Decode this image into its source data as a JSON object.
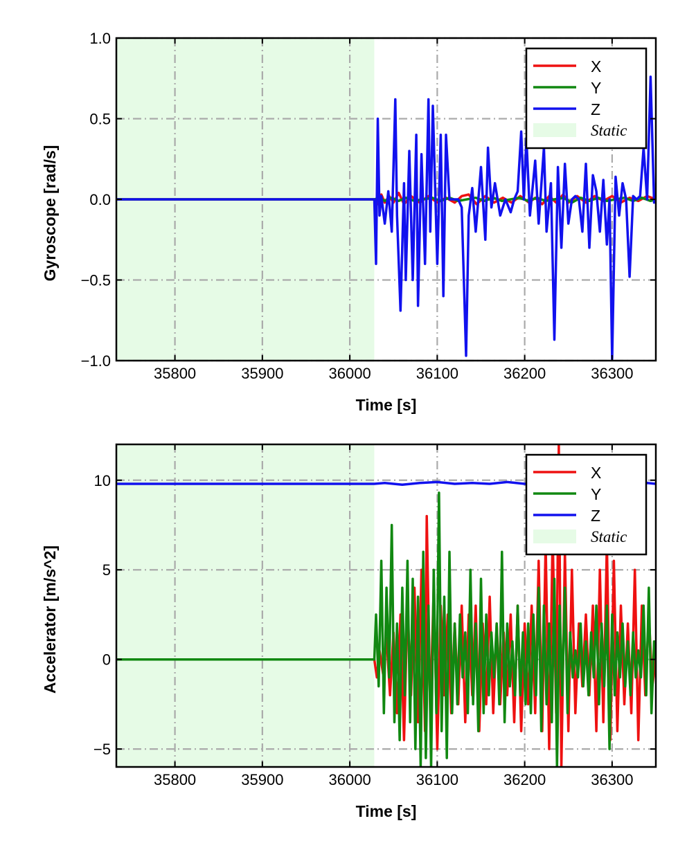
{
  "chart_data": [
    {
      "type": "line",
      "xlabel": "Time [s]",
      "ylabel": "Gyroscope [rad/s]",
      "xlim": [
        35733,
        36350
      ],
      "ylim": [
        -1.0,
        1.0
      ],
      "x_ticks": [
        35800,
        35900,
        36000,
        36100,
        36200,
        36300
      ],
      "y_ticks": [
        -1.0,
        -0.5,
        0.0,
        0.5,
        1.0
      ],
      "y_tick_labels": [
        "−1.0",
        "−0.5",
        "0.0",
        "0.5",
        "1.0"
      ],
      "grid": true,
      "legend_position": "top-right",
      "static_region": {
        "label": "Static",
        "x_start": 35733,
        "x_end": 36028,
        "color": "#e6fbe6"
      },
      "series": [
        {
          "name": "X",
          "color": "#ee1111",
          "x": [
            35733,
            36028,
            36032,
            36036,
            36040,
            36045,
            36050,
            36056,
            36062,
            36070,
            36080,
            36090,
            36100,
            36110,
            36120,
            36128,
            36136,
            36145,
            36155,
            36165,
            36175,
            36185,
            36195,
            36205,
            36212,
            36220,
            36228,
            36236,
            36244,
            36250,
            36260,
            36270,
            36280,
            36290,
            36300,
            36310,
            36320,
            36330,
            36340,
            36350
          ],
          "y": [
            0.0,
            0.0,
            -0.03,
            0.03,
            -0.02,
            0.02,
            -0.02,
            0.04,
            -0.03,
            0.02,
            -0.02,
            0.02,
            -0.02,
            0.01,
            -0.02,
            0.02,
            0.03,
            -0.03,
            0.02,
            -0.02,
            0.01,
            -0.02,
            0.02,
            -0.02,
            0.01,
            -0.03,
            0.02,
            -0.02,
            0.03,
            -0.02,
            0.02,
            -0.02,
            0.02,
            -0.01,
            0.02,
            -0.02,
            0.01,
            -0.01,
            0.02,
            0.0
          ]
        },
        {
          "name": "Y",
          "color": "#118811",
          "x": [
            35733,
            36028,
            36034,
            36040,
            36048,
            36056,
            36064,
            36074,
            36084,
            36094,
            36104,
            36114,
            36124,
            36134,
            36144,
            36154,
            36164,
            36174,
            36184,
            36194,
            36204,
            36214,
            36224,
            36234,
            36244,
            36254,
            36264,
            36274,
            36284,
            36294,
            36304,
            36314,
            36324,
            36334,
            36344,
            36350
          ],
          "y": [
            0.0,
            0.0,
            0.01,
            -0.01,
            0.01,
            -0.01,
            0.01,
            -0.01,
            0.0,
            0.01,
            -0.01,
            0.01,
            -0.01,
            0.0,
            0.01,
            -0.01,
            0.01,
            -0.01,
            0.0,
            0.01,
            -0.01,
            0.01,
            -0.01,
            0.0,
            0.01,
            -0.02,
            0.01,
            -0.01,
            0.01,
            -0.01,
            0.0,
            0.01,
            -0.01,
            0.01,
            -0.01,
            0.0
          ]
        },
        {
          "name": "Z",
          "color": "#1111ee",
          "x": [
            35733,
            36028,
            36030,
            36032,
            36034,
            36036,
            36040,
            36044,
            36048,
            36052,
            36054,
            36058,
            36062,
            36064,
            36068,
            36072,
            36076,
            36078,
            36082,
            36086,
            36090,
            36092,
            36095,
            36098,
            36100,
            36104,
            36107,
            36110,
            36114,
            36118,
            36124,
            36128,
            36133,
            36136,
            36140,
            36144,
            36150,
            36155,
            36158,
            36162,
            36166,
            36172,
            36178,
            36184,
            36188,
            36192,
            36196,
            36199,
            36202,
            36206,
            36212,
            36216,
            36222,
            36225,
            36230,
            36234,
            36238,
            36242,
            36246,
            36250,
            36254,
            36258,
            36262,
            36266,
            36270,
            36274,
            36278,
            36282,
            36286,
            36290,
            36294,
            36297,
            36300,
            36304,
            36308,
            36312,
            36316,
            36320,
            36324,
            36328,
            36332,
            36336,
            36340,
            36344,
            36348,
            36350
          ],
          "y": [
            0.0,
            0.0,
            -0.4,
            0.5,
            -0.1,
            0.02,
            -0.15,
            0.05,
            -0.2,
            0.62,
            -0.1,
            -0.69,
            0.1,
            -0.5,
            0.3,
            -0.5,
            0.4,
            -0.66,
            0.28,
            -0.4,
            0.62,
            -0.2,
            0.58,
            0.0,
            -0.4,
            0.4,
            -0.6,
            0.4,
            0.0,
            0.0,
            0.0,
            -0.05,
            -0.97,
            -0.1,
            0.07,
            -0.2,
            0.2,
            -0.25,
            0.32,
            -0.05,
            0.1,
            -0.1,
            0.0,
            -0.08,
            0.0,
            0.05,
            0.42,
            0.0,
            0.38,
            -0.1,
            0.24,
            -0.15,
            0.32,
            -0.2,
            0.1,
            -0.87,
            0.2,
            -0.3,
            0.22,
            -0.15,
            0.0,
            0.02,
            0.0,
            -0.2,
            0.22,
            -0.3,
            0.15,
            0.05,
            -0.2,
            0.12,
            -0.28,
            0.0,
            -0.99,
            0.14,
            -0.1,
            0.1,
            0.0,
            -0.48,
            0.02,
            0.0,
            0.02,
            0.32,
            0.0,
            0.76,
            -0.02,
            0.0
          ]
        }
      ]
    },
    {
      "type": "line",
      "xlabel": "Time [s]",
      "ylabel": "Accelerator [m/s^2]",
      "xlim": [
        35733,
        36350
      ],
      "ylim": [
        -6,
        12
      ],
      "x_ticks": [
        35800,
        35900,
        36000,
        36100,
        36200,
        36300
      ],
      "y_ticks": [
        -5,
        0,
        5,
        10
      ],
      "y_tick_labels": [
        "−5",
        "0",
        "5",
        "10"
      ],
      "grid": true,
      "legend_position": "top-right",
      "static_region": {
        "label": "Static",
        "x_start": 35733,
        "x_end": 36028,
        "color": "#e6fbe6"
      },
      "series": [
        {
          "name": "X",
          "color": "#ee1111",
          "x": [
            35733,
            36028,
            36031,
            36034,
            36038,
            36042,
            36046,
            36050,
            36054,
            36058,
            36062,
            36066,
            36070,
            36074,
            36078,
            36082,
            36086,
            36088,
            36092,
            36096,
            36100,
            36104,
            36108,
            36112,
            36116,
            36120,
            36124,
            36128,
            36132,
            36136,
            36140,
            36144,
            36148,
            36152,
            36156,
            36160,
            36164,
            36168,
            36172,
            36176,
            36180,
            36184,
            36188,
            36192,
            36196,
            36200,
            36204,
            36208,
            36212,
            36216,
            36220,
            36224,
            36228,
            36232,
            36236,
            36239,
            36242,
            36246,
            36250,
            36254,
            36258,
            36262,
            36266,
            36270,
            36274,
            36278,
            36282,
            36286,
            36290,
            36294,
            36298,
            36302,
            36306,
            36310,
            36314,
            36318,
            36322,
            36326,
            36330,
            36334,
            36338,
            36342,
            36346,
            36350
          ],
          "y": [
            0.0,
            0.0,
            -1.0,
            0.5,
            -0.8,
            1.2,
            -2.0,
            1.5,
            -3.0,
            2.5,
            -4.5,
            3.0,
            -2.0,
            4.0,
            -3.5,
            5.0,
            -4.0,
            8.0,
            -3.0,
            4.0,
            -5.0,
            3.0,
            -2.0,
            2.5,
            -3.0,
            2.0,
            -2.5,
            3.0,
            -3.5,
            2.5,
            -2.0,
            3.0,
            -4.0,
            2.0,
            -2.5,
            3.5,
            -3.0,
            2.0,
            -2.5,
            1.5,
            -2.0,
            2.5,
            -3.5,
            3.0,
            -4.0,
            2.0,
            -2.5,
            3.0,
            -3.0,
            5.5,
            -4.0,
            6.5,
            -5.0,
            7.0,
            -3.0,
            12.0,
            -6.0,
            6.0,
            -4.0,
            5.0,
            -3.0,
            2.0,
            -1.5,
            2.5,
            -2.0,
            3.0,
            -4.0,
            5.0,
            -3.5,
            6.5,
            -4.5,
            5.5,
            -4.0,
            3.0,
            -2.5,
            2.0,
            -3.0,
            5.0,
            -4.5,
            3.0,
            -2.0,
            2.5,
            -1.5,
            0.0
          ]
        },
        {
          "name": "Y",
          "color": "#118811",
          "x": [
            35733,
            36028,
            36030,
            36033,
            36036,
            36039,
            36042,
            36045,
            36048,
            36051,
            36054,
            36057,
            36060,
            36063,
            36066,
            36069,
            36072,
            36075,
            36078,
            36081,
            36084,
            36087,
            36090,
            36093,
            36096,
            36099,
            36102,
            36105,
            36108,
            36111,
            36114,
            36117,
            36120,
            36123,
            36126,
            36129,
            36132,
            36135,
            36138,
            36141,
            36144,
            36147,
            36150,
            36153,
            36156,
            36159,
            36162,
            36165,
            36168,
            36171,
            36174,
            36177,
            36180,
            36183,
            36186,
            36189,
            36192,
            36195,
            36198,
            36201,
            36204,
            36207,
            36210,
            36213,
            36216,
            36219,
            36222,
            36225,
            36228,
            36231,
            36234,
            36237,
            36240,
            36243,
            36246,
            36249,
            36252,
            36255,
            36258,
            36261,
            36264,
            36267,
            36270,
            36273,
            36276,
            36279,
            36282,
            36285,
            36288,
            36291,
            36294,
            36297,
            36300,
            36303,
            36306,
            36309,
            36312,
            36315,
            36318,
            36321,
            36324,
            36327,
            36330,
            36333,
            36336,
            36339,
            36342,
            36345,
            36348,
            36350
          ],
          "y": [
            0.0,
            0.0,
            2.5,
            -1.5,
            5.5,
            -3.0,
            4.0,
            -1.0,
            7.5,
            -3.5,
            2.0,
            -4.5,
            4.0,
            -2.0,
            5.5,
            -3.5,
            4.5,
            -5.0,
            3.5,
            -6.0,
            6.0,
            -5.5,
            3.0,
            -6.0,
            5.0,
            -3.0,
            9.3,
            -4.0,
            3.5,
            -5.5,
            6.0,
            -3.0,
            2.0,
            -2.5,
            2.5,
            -1.0,
            1.5,
            -3.0,
            5.0,
            -2.5,
            2.0,
            -4.0,
            4.5,
            -3.0,
            2.5,
            -2.0,
            1.5,
            -1.0,
            2.0,
            -2.5,
            6.0,
            -3.5,
            2.0,
            -1.5,
            1.0,
            -2.0,
            3.0,
            -2.0,
            1.5,
            -2.5,
            2.0,
            -3.0,
            2.5,
            -2.0,
            4.0,
            -4.0,
            3.0,
            -2.5,
            2.0,
            -3.5,
            4.5,
            -6.0,
            3.0,
            -2.0,
            4.0,
            -3.0,
            1.5,
            -1.0,
            0.5,
            -1.0,
            2.0,
            -1.5,
            1.0,
            -2.0,
            1.5,
            -1.0,
            3.0,
            -2.5,
            2.0,
            -1.5,
            3.0,
            -5.0,
            2.5,
            -2.0,
            1.5,
            -1.0,
            2.0,
            -1.5,
            1.0,
            -2.0,
            1.5,
            -1.0,
            0.5,
            -1.0,
            3.0,
            -2.0,
            4.0,
            -3.0,
            1.0,
            0.0
          ]
        },
        {
          "name": "Z",
          "color": "#1111ee",
          "x": [
            35733,
            35800,
            35900,
            36000,
            36028,
            36040,
            36060,
            36080,
            36100,
            36120,
            36140,
            36160,
            36180,
            36200,
            36220,
            36240,
            36260,
            36280,
            36300,
            36320,
            36340,
            36350
          ],
          "y": [
            9.8,
            9.8,
            9.8,
            9.8,
            9.8,
            9.85,
            9.75,
            9.85,
            9.9,
            9.8,
            9.85,
            9.8,
            9.9,
            9.8,
            9.85,
            9.8,
            9.9,
            9.8,
            9.85,
            9.8,
            9.85,
            9.8
          ]
        }
      ]
    }
  ]
}
